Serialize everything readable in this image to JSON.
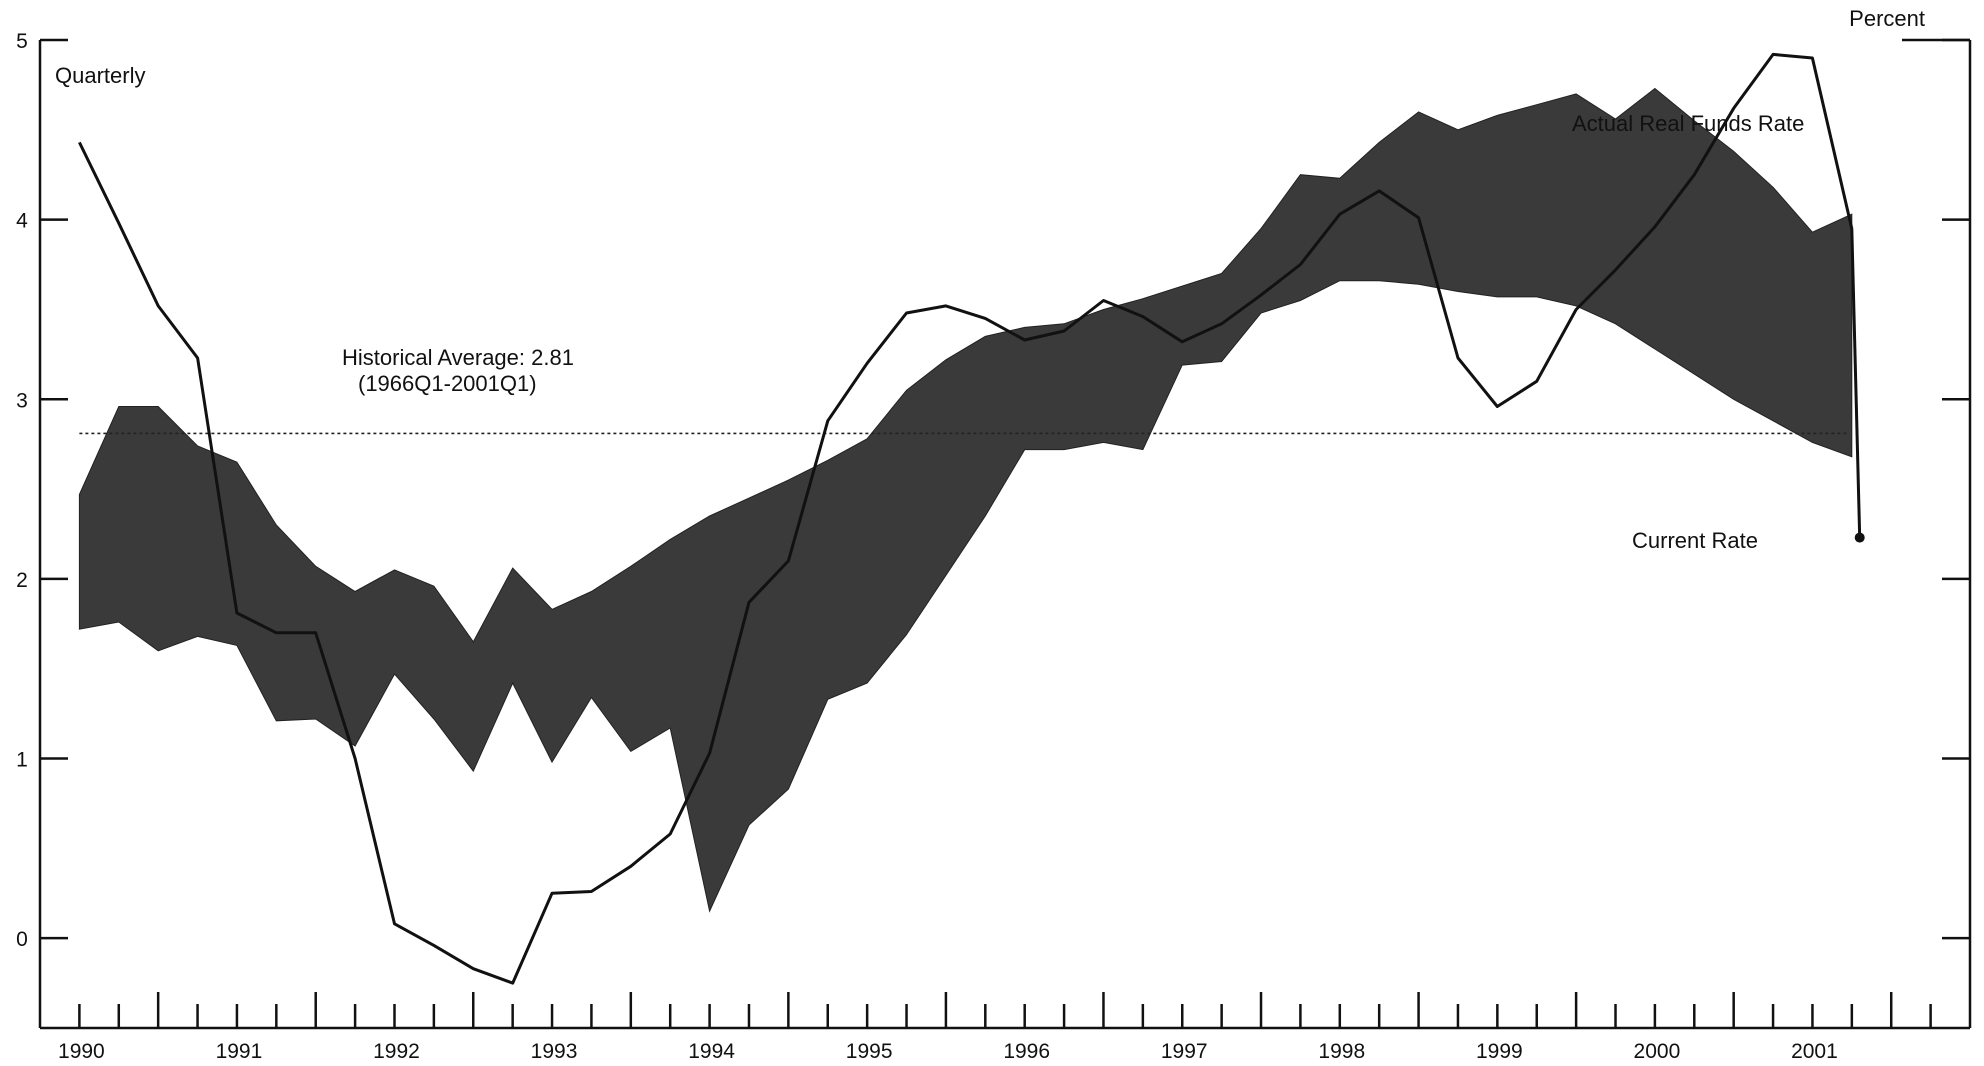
{
  "chart_data": {
    "type": "area",
    "frequency_label": "Quarterly",
    "ylabel": "Percent",
    "ylim": [
      -0.5,
      5
    ],
    "yticks": [
      "0",
      "1",
      "2",
      "3",
      "4",
      "5"
    ],
    "xlim": [
      1989.25,
      2001.5
    ],
    "xtick_labels": [
      "1990",
      "1991",
      "1992",
      "1993",
      "1994",
      "1995",
      "1996",
      "1997",
      "1998",
      "1999",
      "2000",
      "2001"
    ],
    "historical_average": {
      "value": 2.81,
      "label": "Historical Average: 2.81",
      "period_label": "(1966Q1-2001Q1)"
    },
    "band": {
      "x": [
        1989.5,
        1989.75,
        1990.0,
        1990.25,
        1990.5,
        1990.75,
        1991.0,
        1991.25,
        1991.5,
        1991.75,
        1992.0,
        1992.25,
        1992.5,
        1992.75,
        1993.0,
        1993.25,
        1993.5,
        1993.75,
        1994.0,
        1994.25,
        1994.5,
        1994.75,
        1995.0,
        1995.25,
        1995.5,
        1995.75,
        1996.0,
        1996.25,
        1996.5,
        1996.75,
        1997.0,
        1997.25,
        1997.5,
        1997.75,
        1998.0,
        1998.25,
        1998.5,
        1998.75,
        1999.0,
        1999.25,
        1999.5,
        1999.75,
        2000.0,
        2000.25,
        2000.5,
        2000.75
      ],
      "upper": [
        2.47,
        2.96,
        2.96,
        2.74,
        2.65,
        2.3,
        2.07,
        1.93,
        2.05,
        1.96,
        1.65,
        2.06,
        1.83,
        1.93,
        2.07,
        2.22,
        2.35,
        2.45,
        2.55,
        2.66,
        2.78,
        3.05,
        3.22,
        3.35,
        3.4,
        3.42,
        3.5,
        3.56,
        3.63,
        3.7,
        3.95,
        4.25,
        4.23,
        4.43,
        4.6,
        4.5,
        4.58,
        4.64,
        4.7,
        4.56,
        4.73,
        4.55,
        4.38,
        4.18,
        3.93,
        4.03
      ],
      "lower": [
        1.72,
        1.76,
        1.6,
        1.68,
        1.63,
        1.21,
        1.22,
        1.07,
        1.47,
        1.22,
        0.93,
        1.42,
        0.98,
        1.34,
        1.04,
        1.17,
        0.15,
        0.63,
        0.83,
        1.33,
        1.42,
        1.69,
        2.02,
        2.35,
        2.72,
        2.72,
        2.76,
        2.72,
        3.19,
        3.21,
        3.48,
        3.55,
        3.66,
        3.66,
        3.64,
        3.6,
        3.57,
        3.57,
        3.52,
        3.42,
        3.28,
        3.14,
        3.0,
        2.88,
        2.76,
        2.68
      ],
      "color": "#3a3a3a"
    },
    "series": [
      {
        "name": "Actual Real Funds Rate",
        "x": [
          1989.5,
          1989.75,
          1990.0,
          1990.25,
          1990.5,
          1990.75,
          1991.0,
          1991.25,
          1991.5,
          1991.75,
          1992.0,
          1992.25,
          1992.5,
          1992.75,
          1993.0,
          1993.25,
          1993.5,
          1993.75,
          1994.0,
          1994.25,
          1994.5,
          1994.75,
          1995.0,
          1995.25,
          1995.5,
          1995.75,
          1996.0,
          1996.25,
          1996.5,
          1996.75,
          1997.0,
          1997.25,
          1997.5,
          1997.75,
          1998.0,
          1998.25,
          1998.5,
          1998.75,
          1999.0,
          1999.25,
          1999.5,
          1999.75,
          2000.0,
          2000.25,
          2000.5,
          2000.75
        ],
        "values": [
          4.43,
          3.98,
          3.52,
          3.23,
          1.81,
          1.7,
          1.7,
          1.0,
          0.08,
          -0.04,
          -0.17,
          -0.25,
          0.25,
          0.26,
          0.4,
          0.58,
          1.03,
          1.87,
          2.1,
          2.88,
          3.2,
          3.48,
          3.52,
          3.45,
          3.33,
          3.38,
          3.55,
          3.46,
          3.32,
          3.42,
          3.58,
          3.75,
          4.03,
          4.16,
          4.01,
          3.23,
          2.96,
          3.1,
          3.5,
          3.72,
          3.96,
          4.25,
          4.62,
          4.92,
          4.9,
          3.95
        ],
        "color": "#111111"
      },
      {
        "name": "Current Rate",
        "x": [
          2000.75,
          2000.8
        ],
        "values": [
          3.95,
          2.23
        ],
        "marker_x": 2000.8,
        "marker_value": 2.23,
        "color": "#111111"
      }
    ],
    "grid": false
  }
}
